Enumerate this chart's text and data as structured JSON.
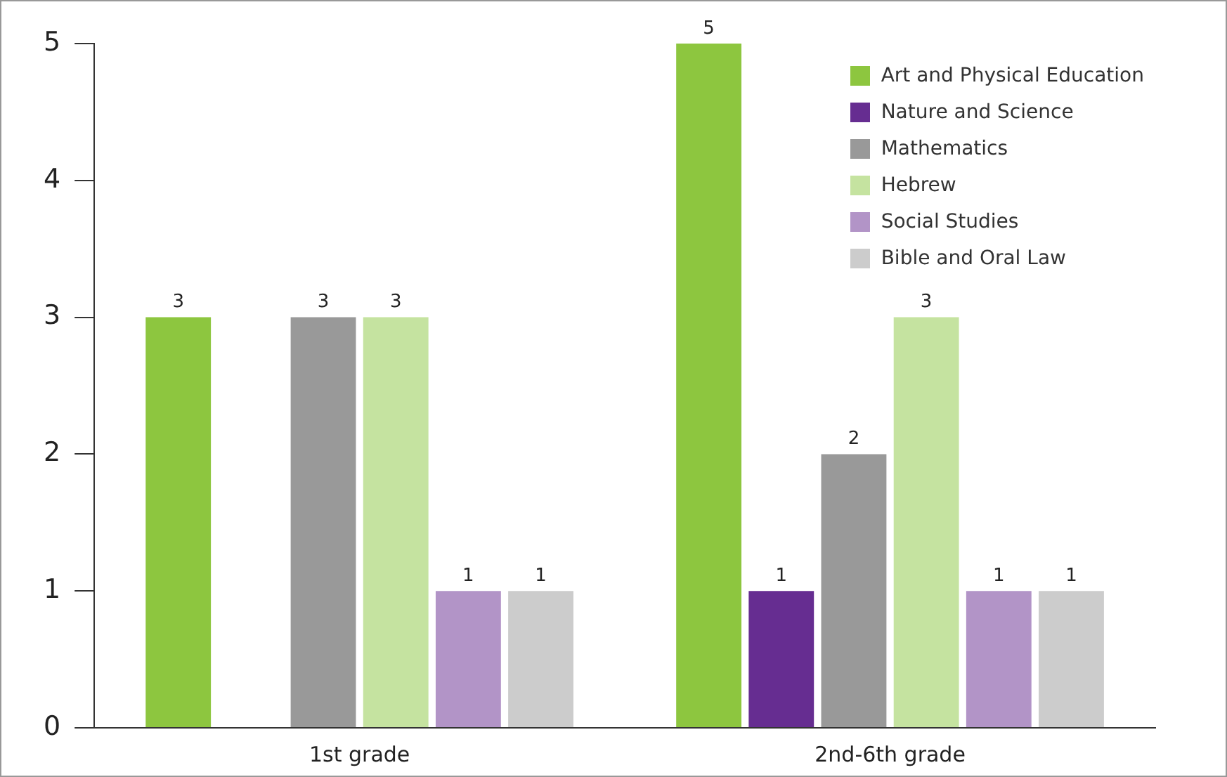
{
  "chart_data": {
    "type": "bar",
    "categories": [
      "1st grade",
      "2nd-6th grade"
    ],
    "series": [
      {
        "name": "Art and Physical Education",
        "color": "#8dc63f",
        "values": [
          3,
          5
        ]
      },
      {
        "name": "Nature and Science",
        "color": "#662d91",
        "values": [
          null,
          1
        ]
      },
      {
        "name": "Mathematics",
        "color": "#999999",
        "values": [
          3,
          2
        ]
      },
      {
        "name": "Hebrew",
        "color": "#c5e3a0",
        "values": [
          3,
          3
        ]
      },
      {
        "name": "Social Studies",
        "color": "#b294c7",
        "values": [
          1,
          1
        ]
      },
      {
        "name": "Bible and Oral Law",
        "color": "#cccccc",
        "values": [
          1,
          1
        ]
      }
    ],
    "ylim": [
      0,
      5
    ],
    "yticks": [
      0,
      1,
      2,
      3,
      4,
      5
    ],
    "grid": false,
    "legend": "top right",
    "data_labels": true
  }
}
